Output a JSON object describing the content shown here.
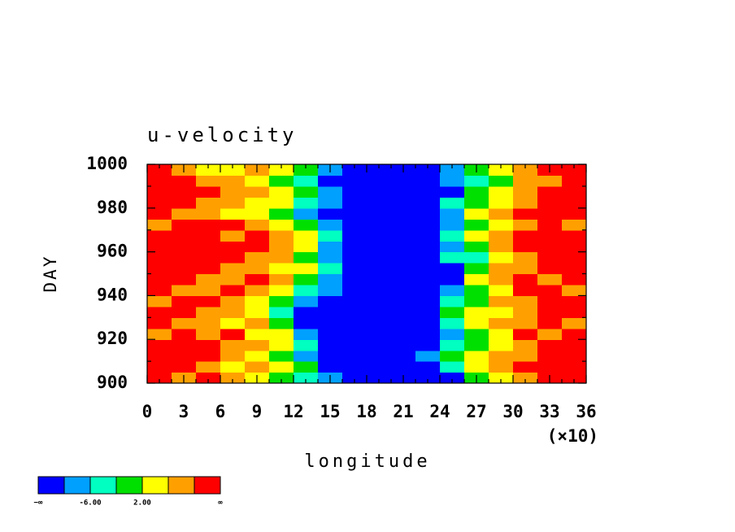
{
  "chart_data": {
    "type": "contour",
    "title": "u-velocity",
    "xlabel": "longitude",
    "x_multiplier": "(×10)",
    "ylabel": "DAY",
    "xlim": [
      0,
      36
    ],
    "xticks": [
      0,
      3,
      6,
      9,
      12,
      15,
      18,
      21,
      24,
      27,
      30,
      33,
      36
    ],
    "xminorticks": [
      1,
      2,
      4,
      5,
      7,
      8,
      10,
      11,
      13,
      14,
      16,
      17,
      19,
      20,
      22,
      23,
      25,
      26,
      28,
      29,
      31,
      32,
      34,
      35
    ],
    "ylim": [
      900,
      1000
    ],
    "yticks": [
      900,
      920,
      940,
      960,
      980,
      1000
    ],
    "yminorticks": [
      910,
      930,
      950,
      970,
      990
    ],
    "x": [
      1,
      3,
      5,
      7,
      9,
      11,
      13,
      15,
      17,
      19,
      21,
      23,
      25,
      27,
      29,
      31,
      33,
      35
    ],
    "y": [
      902.5,
      907.5,
      912.5,
      917.5,
      922.5,
      927.5,
      932.5,
      937.5,
      942.5,
      947.5,
      952.5,
      957.5,
      962.5,
      967.5,
      972.5,
      977.5,
      982.5,
      987.5,
      992.5,
      997.5
    ],
    "levels": [
      -10,
      -6,
      -2,
      2,
      6,
      10
    ],
    "colors": [
      "#0000ff",
      "#00a0ff",
      "#00ffc0",
      "#00e000",
      "#ffff00",
      "#ffa000",
      "#ff0000"
    ],
    "boundary_labels": [
      "−∞",
      null,
      "-6.00",
      null,
      "2.00",
      null,
      null,
      "∞"
    ],
    "z": [
      [
        12,
        8,
        12,
        8,
        4,
        0,
        -4,
        -8,
        -12,
        -12,
        -12,
        -12,
        -12,
        0,
        4,
        8,
        12,
        12
      ],
      [
        12,
        12,
        8,
        4,
        8,
        4,
        0,
        -12,
        -12,
        -12,
        -12,
        -12,
        -4,
        4,
        8,
        12,
        12,
        12
      ],
      [
        12,
        12,
        12,
        8,
        4,
        0,
        -8,
        -12,
        -12,
        -12,
        -12,
        -8,
        0,
        4,
        8,
        8,
        12,
        12
      ],
      [
        12,
        12,
        12,
        8,
        8,
        4,
        -4,
        -12,
        -12,
        -12,
        -12,
        -12,
        -4,
        0,
        4,
        8,
        12,
        12
      ],
      [
        8,
        12,
        8,
        12,
        4,
        4,
        -8,
        -12,
        -12,
        -12,
        -12,
        -12,
        -8,
        0,
        4,
        12,
        8,
        12
      ],
      [
        12,
        8,
        8,
        4,
        8,
        0,
        -12,
        -12,
        -12,
        -12,
        -12,
        -12,
        -4,
        4,
        8,
        8,
        12,
        8
      ],
      [
        12,
        12,
        8,
        8,
        4,
        -4,
        -12,
        -12,
        -12,
        -12,
        -12,
        -12,
        0,
        4,
        4,
        8,
        12,
        12
      ],
      [
        8,
        12,
        12,
        8,
        4,
        0,
        -8,
        -12,
        -12,
        -12,
        -12,
        -12,
        -4,
        0,
        8,
        8,
        12,
        12
      ],
      [
        12,
        8,
        8,
        12,
        8,
        4,
        -4,
        -8,
        -12,
        -12,
        -12,
        -12,
        -8,
        0,
        4,
        12,
        12,
        8
      ],
      [
        12,
        12,
        8,
        8,
        12,
        8,
        0,
        -8,
        -12,
        -12,
        -12,
        -12,
        -12,
        4,
        8,
        12,
        8,
        12
      ],
      [
        12,
        12,
        12,
        8,
        8,
        4,
        4,
        -4,
        -12,
        -12,
        -12,
        -12,
        -12,
        0,
        8,
        8,
        12,
        12
      ],
      [
        12,
        12,
        12,
        12,
        8,
        8,
        0,
        -8,
        -12,
        -12,
        -12,
        -12,
        -4,
        -4,
        4,
        8,
        12,
        12
      ],
      [
        12,
        12,
        12,
        12,
        12,
        8,
        4,
        -8,
        -12,
        -12,
        -12,
        -12,
        -8,
        0,
        8,
        12,
        12,
        12
      ],
      [
        12,
        12,
        12,
        8,
        12,
        8,
        4,
        -4,
        -12,
        -12,
        -12,
        -12,
        -4,
        4,
        8,
        12,
        12,
        12
      ],
      [
        8,
        12,
        12,
        12,
        8,
        4,
        0,
        -8,
        -12,
        -12,
        -12,
        -12,
        -8,
        0,
        4,
        8,
        12,
        8
      ],
      [
        12,
        8,
        8,
        4,
        4,
        0,
        -8,
        -12,
        -12,
        -12,
        -12,
        -12,
        -8,
        4,
        8,
        12,
        12,
        12
      ],
      [
        12,
        12,
        8,
        8,
        4,
        4,
        -4,
        -8,
        -12,
        -12,
        -12,
        -12,
        -4,
        0,
        4,
        8,
        12,
        12
      ],
      [
        12,
        12,
        12,
        8,
        8,
        4,
        0,
        -8,
        -12,
        -12,
        -12,
        -12,
        -12,
        0,
        4,
        8,
        12,
        12
      ],
      [
        12,
        12,
        8,
        8,
        4,
        0,
        -4,
        -12,
        -12,
        -12,
        -12,
        -12,
        -8,
        -4,
        0,
        8,
        8,
        12
      ],
      [
        12,
        8,
        4,
        4,
        8,
        4,
        0,
        -8,
        -12,
        -12,
        -12,
        -12,
        -8,
        0,
        4,
        8,
        12,
        12
      ]
    ]
  }
}
